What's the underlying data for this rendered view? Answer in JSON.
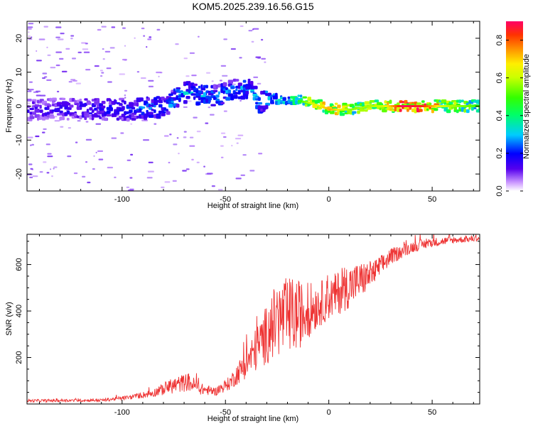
{
  "figure": {
    "title": "KOM5.2025.239.16.56.G15"
  },
  "chart_data": [
    {
      "type": "heatmap",
      "title": "KOM5.2025.239.16.56.G15",
      "xlabel": "Height of straight line (km)",
      "ylabel": "Frequency (Hz)",
      "xlim": [
        -146,
        73
      ],
      "ylim": [
        -25,
        25
      ],
      "xticks": [
        -100,
        -50,
        0,
        50
      ],
      "yticks": [
        -20,
        -10,
        0,
        10,
        20
      ],
      "colorbar": {
        "label": "Normalized spectral amplitude",
        "range": [
          0.0,
          0.9
        ],
        "ticks": [
          0.0,
          0.2,
          0.4,
          0.6,
          0.8
        ]
      },
      "ridge_frequency_hz": [
        {
          "x": -145,
          "y": -1
        },
        {
          "x": -120,
          "y": -1
        },
        {
          "x": -95,
          "y": -1
        },
        {
          "x": -80,
          "y": 0
        },
        {
          "x": -70,
          "y": 4
        },
        {
          "x": -62,
          "y": 3
        },
        {
          "x": -55,
          "y": 3
        },
        {
          "x": -45,
          "y": 5
        },
        {
          "x": -38,
          "y": 5
        },
        {
          "x": -36,
          "y": 1
        },
        {
          "x": -30,
          "y": 2
        },
        {
          "x": -20,
          "y": 2
        },
        {
          "x": -10,
          "y": 1
        },
        {
          "x": 0,
          "y": -1
        },
        {
          "x": 10,
          "y": -1
        },
        {
          "x": 20,
          "y": 0
        },
        {
          "x": 40,
          "y": 0
        },
        {
          "x": 73,
          "y": 0
        }
      ],
      "ridge_amplitude": [
        {
          "x": -145,
          "a": 0.15
        },
        {
          "x": -110,
          "a": 0.2
        },
        {
          "x": -90,
          "a": 0.25
        },
        {
          "x": -70,
          "a": 0.3
        },
        {
          "x": -50,
          "a": 0.28
        },
        {
          "x": -35,
          "a": 0.3
        },
        {
          "x": -20,
          "a": 0.35
        },
        {
          "x": -10,
          "a": 0.6
        },
        {
          "x": 0,
          "a": 0.75
        },
        {
          "x": 10,
          "a": 0.55
        },
        {
          "x": 25,
          "a": 0.6
        },
        {
          "x": 35,
          "a": 0.9
        },
        {
          "x": 45,
          "a": 0.85
        },
        {
          "x": 55,
          "a": 0.6
        },
        {
          "x": 73,
          "a": 0.5
        }
      ]
    },
    {
      "type": "line",
      "xlabel": "Height of straight line (km)",
      "ylabel": "SNR (v/v)",
      "xlim": [
        -146,
        73
      ],
      "ylim": [
        0,
        730
      ],
      "xticks": [
        -100,
        -50,
        0,
        50
      ],
      "yticks": [
        200,
        400,
        600
      ],
      "series": [
        {
          "name": "SNR",
          "color": "#ee3333",
          "envelope": [
            {
              "x": -146,
              "base": 8,
              "spread": 12
            },
            {
              "x": -110,
              "base": 10,
              "spread": 12
            },
            {
              "x": -95,
              "base": 20,
              "spread": 20
            },
            {
              "x": -85,
              "base": 30,
              "spread": 35
            },
            {
              "x": -75,
              "base": 45,
              "spread": 70
            },
            {
              "x": -68,
              "base": 55,
              "spread": 80
            },
            {
              "x": -62,
              "base": 40,
              "spread": 50
            },
            {
              "x": -55,
              "base": 35,
              "spread": 35
            },
            {
              "x": -48,
              "base": 60,
              "spread": 60
            },
            {
              "x": -40,
              "base": 110,
              "spread": 130
            },
            {
              "x": -32,
              "base": 160,
              "spread": 230
            },
            {
              "x": -25,
              "base": 200,
              "spread": 330
            },
            {
              "x": -18,
              "base": 200,
              "spread": 350
            },
            {
              "x": -12,
              "base": 260,
              "spread": 260
            },
            {
              "x": -5,
              "base": 330,
              "spread": 200
            },
            {
              "x": 0,
              "base": 360,
              "spread": 180
            },
            {
              "x": 8,
              "base": 400,
              "spread": 200
            },
            {
              "x": 15,
              "base": 450,
              "spread": 160
            },
            {
              "x": 22,
              "base": 510,
              "spread": 110
            },
            {
              "x": 30,
              "base": 600,
              "spread": 70
            },
            {
              "x": 40,
              "base": 650,
              "spread": 50
            },
            {
              "x": 50,
              "base": 675,
              "spread": 40
            },
            {
              "x": 60,
              "base": 690,
              "spread": 30
            },
            {
              "x": 73,
              "base": 700,
              "spread": 25
            }
          ]
        }
      ]
    }
  ]
}
